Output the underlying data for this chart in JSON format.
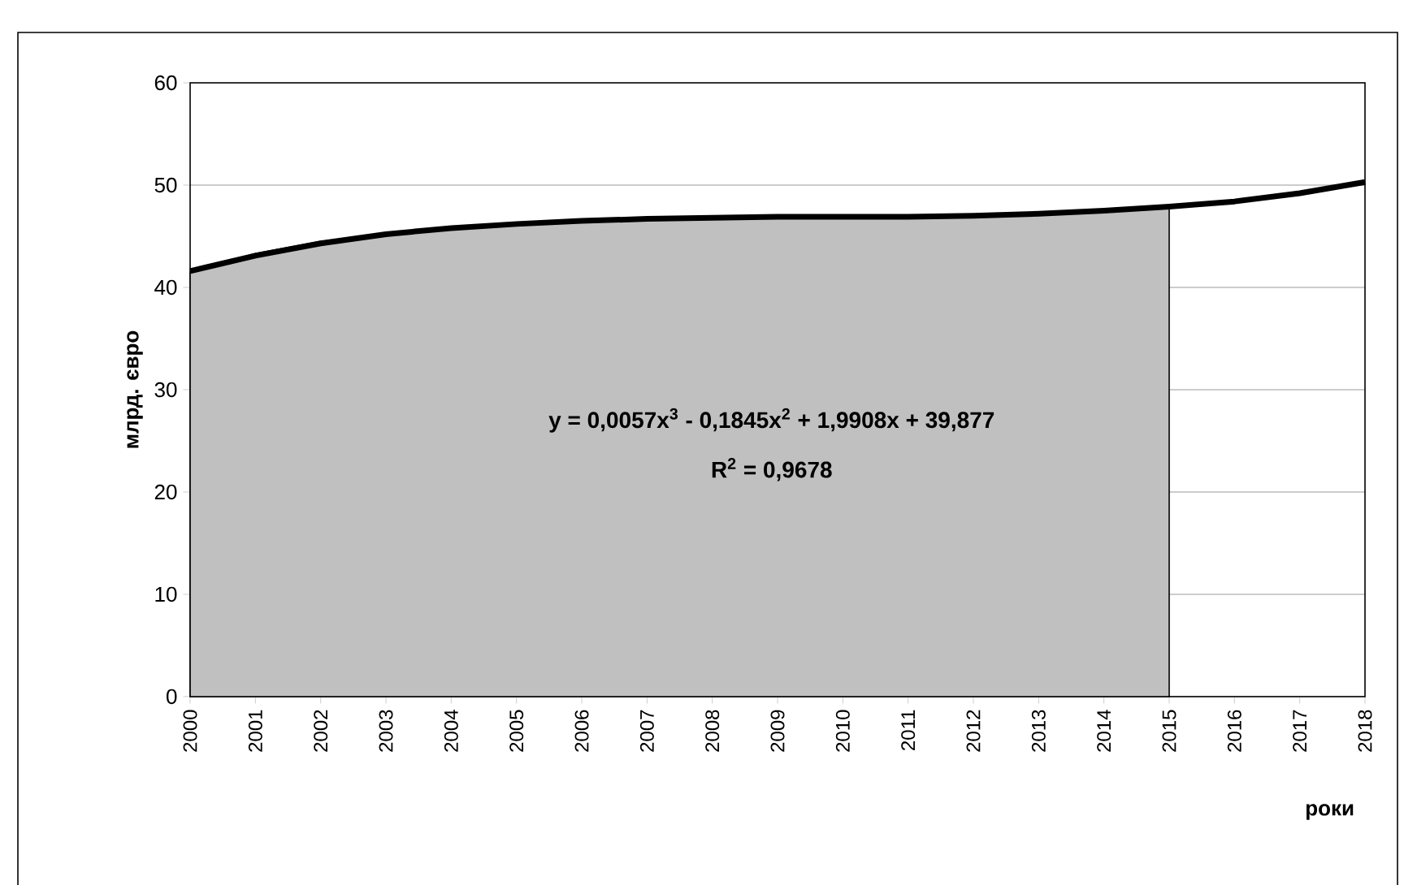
{
  "chart_data": {
    "type": "area",
    "ylabel": "млрд. євро",
    "xlabel": "роки",
    "annotations": [
      "y = 0,0057x$^{3}$ - 0,1845x$^{2}$ + 1,9908x + 39,877",
      "R$^{2}$ = 0,9678"
    ],
    "series": [
      {
        "color": "#c0c0c0",
        "x": [
          2000,
          2001,
          2002,
          2003,
          2004,
          2005,
          2006,
          2007,
          2008,
          2009,
          2010,
          2011,
          2012,
          2013,
          2014,
          2015
        ],
        "values": [
          41.5,
          43.3,
          44.5,
          45.2,
          45.8,
          46.2,
          46.5,
          46.7,
          46.8,
          46.9,
          46.9,
          46.9,
          47.0,
          47.2,
          47.5,
          47.9
        ]
      },
      {
        "type": "line",
        "color": "#000000",
        "x": [
          2000,
          2001,
          2002,
          2003,
          2004,
          2005,
          2006,
          2007,
          2008,
          2009,
          2010,
          2011,
          2012,
          2013,
          2014,
          2015,
          2016,
          2017,
          2018
        ],
        "values": [
          41.6,
          43.1,
          44.3,
          45.2,
          45.8,
          46.2,
          46.5,
          46.7,
          46.8,
          46.9,
          46.9,
          46.9,
          47.0,
          47.2,
          47.5,
          47.9,
          48.4,
          49.2,
          50.3
        ]
      }
    ],
    "xlim": [
      2000,
      2018
    ],
    "xticks": [
      2000,
      2001,
      2002,
      2003,
      2004,
      2005,
      2006,
      2007,
      2008,
      2009,
      2010,
      2011,
      2012,
      2013,
      2014,
      2015,
      2016,
      2017,
      2018
    ],
    "ylim": [
      0,
      60
    ],
    "yticks": [
      0,
      10,
      20,
      30,
      40,
      50,
      60
    ],
    "grid": "y"
  }
}
